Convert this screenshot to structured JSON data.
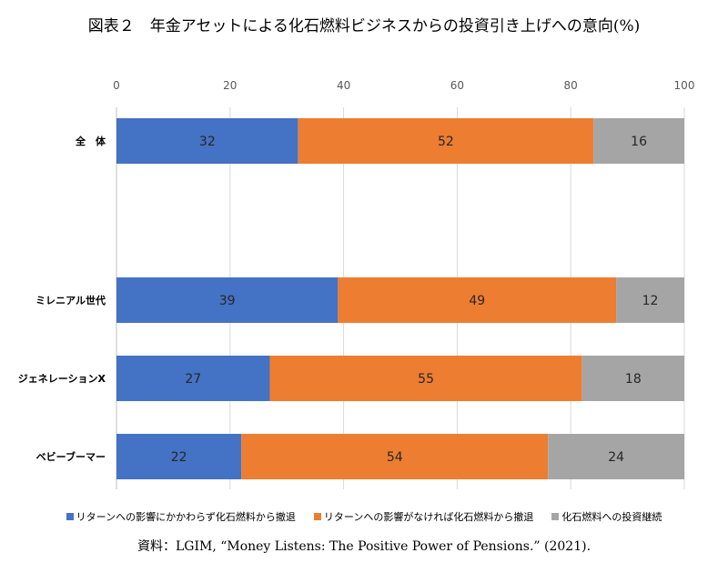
{
  "title": "図表２　年金アセットによる化石燃料ビジネスからの投資引き上げへの意向(%)",
  "source": "資料：LGIM, “Money Listens: The Positive Power of Pensions.” (2021).",
  "chart_data": {
    "type": "bar",
    "orientation": "horizontal",
    "stacked": true,
    "xlim": [
      0,
      100
    ],
    "x_ticks": [
      0,
      20,
      40,
      60,
      80,
      100
    ],
    "grid": true,
    "legend_position": "bottom",
    "categories": [
      "全　体",
      "ミレニアル世代",
      "ジェネレーションX",
      "ベビーブーマー"
    ],
    "series": [
      {
        "name": "リターンへの影響にかかわらず化石燃料から撤退",
        "color": "#4472C4",
        "values": [
          32,
          39,
          27,
          22
        ]
      },
      {
        "name": "リターンへの影響がなければ化石燃料から撤退",
        "color": "#ED7D31",
        "values": [
          52,
          49,
          55,
          54
        ]
      },
      {
        "name": "化石燃料への投資継続",
        "color": "#A5A5A5",
        "values": [
          16,
          12,
          18,
          24
        ]
      }
    ]
  }
}
